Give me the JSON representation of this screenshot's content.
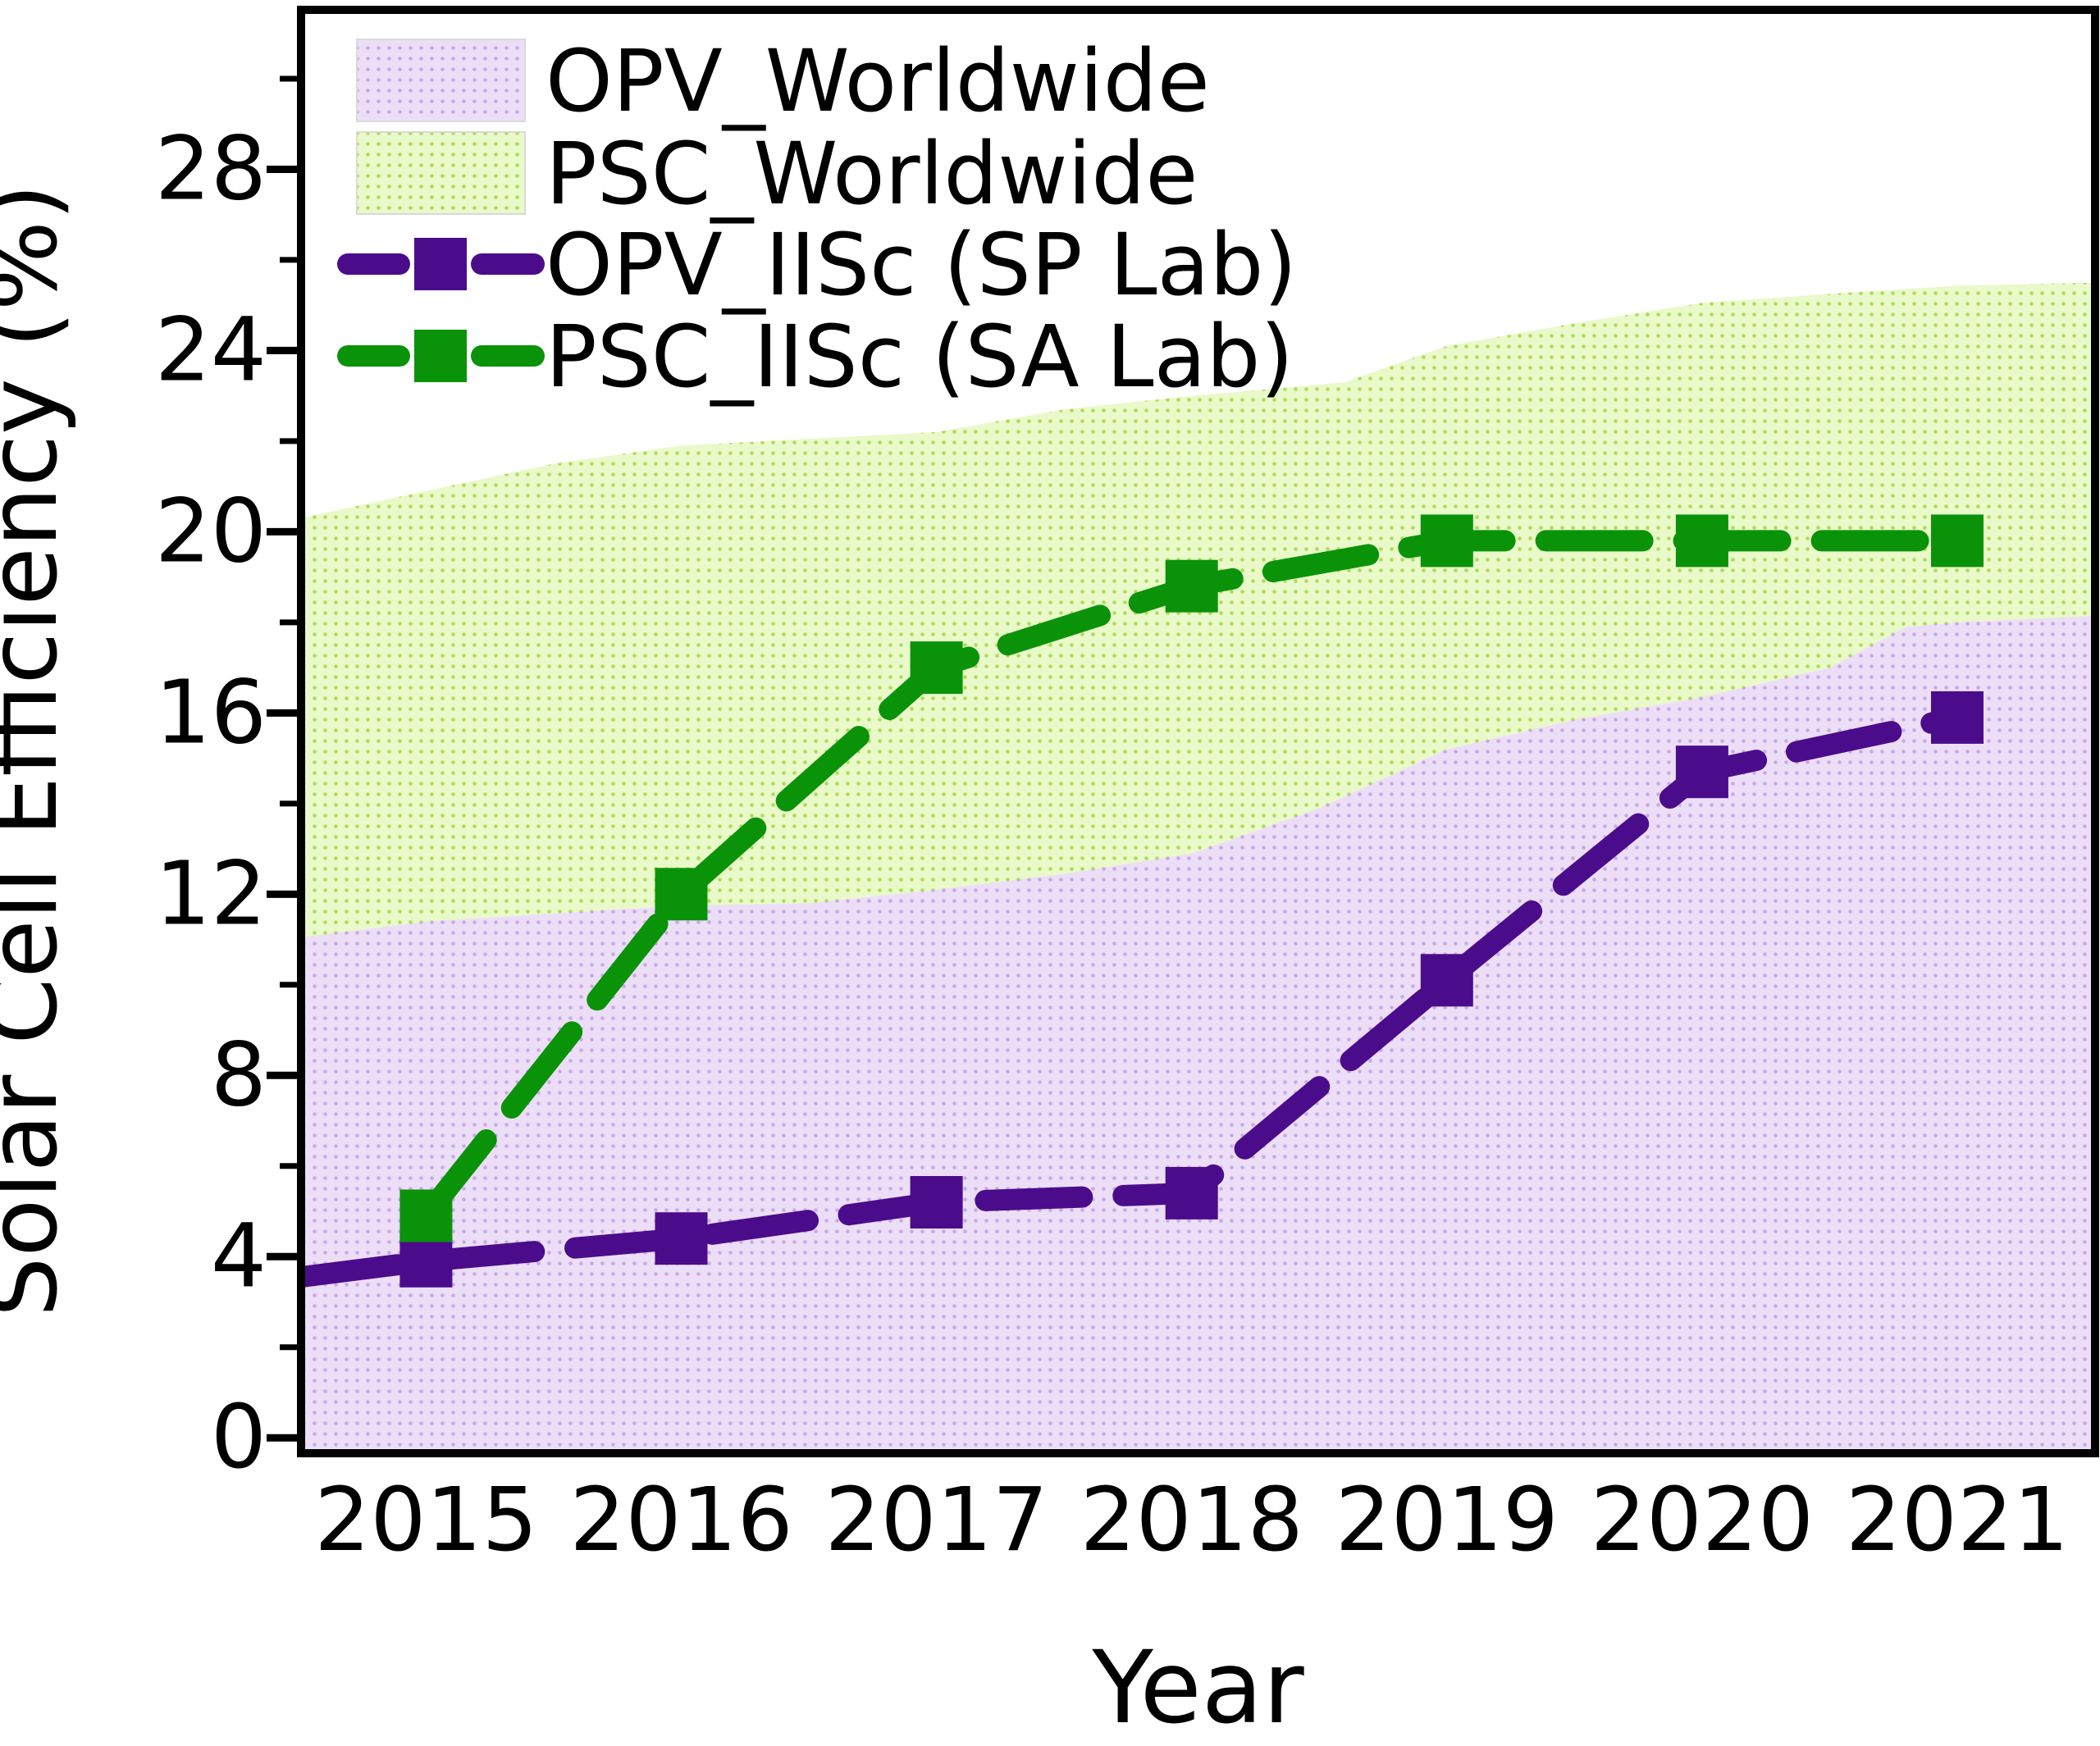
{
  "chart_data": {
    "type": "area+line",
    "title": "",
    "xlabel": "Year",
    "ylabel": "Solar Cell Efficiency (%)",
    "x_ticks": [
      2015,
      2016,
      2017,
      2018,
      2019,
      2020,
      2021
    ],
    "y_ticks": [
      0,
      4,
      8,
      12,
      16,
      20,
      24,
      28
    ],
    "y_minor_ticks": [
      2,
      6,
      10,
      14,
      18,
      22,
      26,
      30
    ],
    "x_range": [
      2014.51,
      2021.54
    ],
    "y_range": [
      -0.34,
      31.52
    ],
    "grid": false,
    "legend_position": "top-left-inside",
    "axis_color": "#000000",
    "bands": [
      {
        "name": "OPV_Worldwide",
        "fill": "#ECDEF7",
        "dot_color": "#C9A9E4",
        "lower": "floor",
        "upper": [
          [
            2014.51,
            11.05
          ],
          [
            2015,
            11.4
          ],
          [
            2016,
            11.75
          ],
          [
            2016.5,
            11.8
          ],
          [
            2017,
            12.1
          ],
          [
            2017.5,
            12.45
          ],
          [
            2018,
            12.9
          ],
          [
            2018.5,
            13.9
          ],
          [
            2019,
            15.2
          ],
          [
            2019.5,
            15.85
          ],
          [
            2020,
            16.35
          ],
          [
            2020.5,
            17.0
          ],
          [
            2020.8,
            17.9
          ],
          [
            2021,
            18.0
          ],
          [
            2021.54,
            18.15
          ]
        ]
      },
      {
        "name": "PSC_Worldwide",
        "fill": "#E9F9C9",
        "dot_color": "#AEDC55",
        "lower": "OPV_Worldwide",
        "upper": [
          [
            2014.51,
            20.3
          ],
          [
            2015,
            20.9
          ],
          [
            2015.5,
            21.5
          ],
          [
            2016,
            21.9
          ],
          [
            2016.5,
            22.05
          ],
          [
            2017,
            22.2
          ],
          [
            2017.5,
            22.7
          ],
          [
            2018,
            23.0
          ],
          [
            2018.6,
            23.3
          ],
          [
            2019,
            24.1
          ],
          [
            2019.5,
            24.6
          ],
          [
            2020,
            25.05
          ],
          [
            2020.5,
            25.25
          ],
          [
            2021,
            25.43
          ],
          [
            2021.54,
            25.5
          ]
        ]
      }
    ],
    "series": [
      {
        "name": "OPV_IISc (SP Lab)",
        "color": "#4B0C8C",
        "dash": [
          118,
          50
        ],
        "line_width": 26,
        "marker": "square",
        "marker_size": 64,
        "line": [
          [
            2014.51,
            3.55
          ],
          [
            2015,
            3.9
          ],
          [
            2016,
            4.4
          ],
          [
            2017,
            5.2
          ],
          [
            2018,
            5.4
          ],
          [
            2019,
            10.1
          ],
          [
            2020,
            14.7
          ],
          [
            2021,
            15.9
          ]
        ],
        "markers": [
          [
            2015,
            3.9
          ],
          [
            2016,
            4.4
          ],
          [
            2017,
            5.2
          ],
          [
            2018,
            5.4
          ],
          [
            2019,
            10.1
          ],
          [
            2020,
            14.7
          ],
          [
            2021,
            15.9
          ]
        ]
      },
      {
        "name": "PSC_IISc (SA Lab)",
        "color": "#0A9309",
        "dash": [
          118,
          50
        ],
        "line_width": 26,
        "marker": "square",
        "marker_size": 64,
        "line": [
          [
            2015,
            4.9
          ],
          [
            2016,
            12.0
          ],
          [
            2017,
            17.0
          ],
          [
            2018,
            18.8
          ],
          [
            2019,
            19.8
          ],
          [
            2020,
            19.8
          ],
          [
            2021,
            19.8
          ]
        ],
        "markers": [
          [
            2015,
            4.9
          ],
          [
            2016,
            12.0
          ],
          [
            2017,
            17.0
          ],
          [
            2018,
            18.8
          ],
          [
            2019,
            19.8
          ],
          [
            2020,
            19.8
          ],
          [
            2021,
            19.8
          ]
        ]
      }
    ],
    "legend_items": [
      {
        "label": "OPV_Worldwide",
        "type": "band",
        "ref": 0
      },
      {
        "label": "PSC_Worldwide",
        "type": "band",
        "ref": 1
      },
      {
        "label": "OPV_IISc (SP Lab)",
        "type": "series",
        "ref": 0
      },
      {
        "label": "PSC_IISc (SA Lab)",
        "type": "series",
        "ref": 1
      }
    ]
  }
}
